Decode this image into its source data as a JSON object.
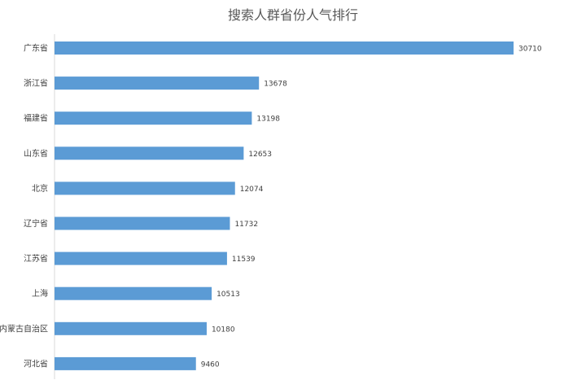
{
  "chart_data": {
    "type": "bar",
    "orientation": "horizontal",
    "title": "搜索人群省份人气排行",
    "xlabel": "",
    "ylabel": "",
    "categories": [
      "广东省",
      "浙江省",
      "福建省",
      "山东省",
      "北京",
      "辽宁省",
      "江苏省",
      "上海",
      "内蒙古自治区",
      "河北省"
    ],
    "values": [
      30710,
      13678,
      13198,
      12653,
      12074,
      11732,
      11539,
      10513,
      10180,
      9460
    ],
    "data_labels": [
      "30710",
      "13678",
      "13198",
      "12653",
      "12074",
      "11732",
      "11539",
      "10513",
      "10180",
      "9460"
    ],
    "xlim": [
      0,
      30710
    ],
    "grid": false,
    "legend": "none",
    "bar_color": "#5B9BD5",
    "axis_color": "#D9D9D9"
  }
}
